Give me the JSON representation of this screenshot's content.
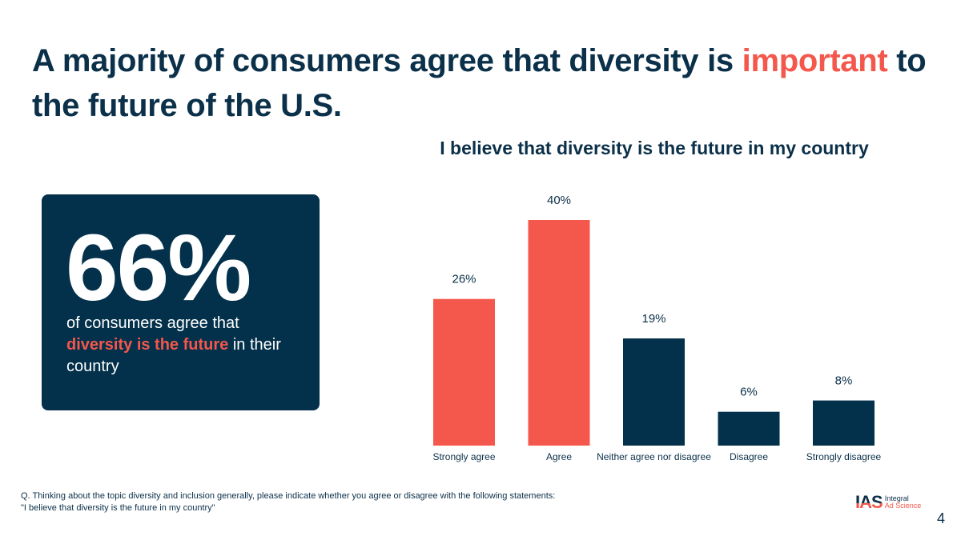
{
  "slide": {
    "title_part1": "A majority of consumers agree that diversity is ",
    "title_accent": "important",
    "title_part2": " to the future of the U.S.",
    "page_number": "4"
  },
  "stat_card": {
    "value": "66%",
    "desc_part1": "of consumers agree that ",
    "desc_highlight": "diversity is the future",
    "desc_part2": " in their country"
  },
  "footnote": {
    "line1": "Q. Thinking about the topic diversity and inclusion generally, please indicate whether you agree or disagree with the following statements:",
    "line2": "\"I believe that diversity is the future in my country\""
  },
  "logo": {
    "mark": "IAS",
    "line1": "Integral",
    "line2": "Ad Science"
  },
  "colors": {
    "navy": "#03304a",
    "coral": "#f4574b",
    "text": "#0b3049"
  },
  "chart_data": {
    "type": "bar",
    "title": "I believe that diversity is the future in my country",
    "categories": [
      "Strongly agree",
      "Agree",
      "Neither agree nor disagree",
      "Disagree",
      "Strongly disagree"
    ],
    "values": [
      26,
      40,
      19,
      6,
      8
    ],
    "data_labels": [
      "26%",
      "40%",
      "19%",
      "6%",
      "8%"
    ],
    "bar_colors": [
      "#f4574b",
      "#f4574b",
      "#03304a",
      "#03304a",
      "#03304a"
    ],
    "xlabel": "",
    "ylabel": "",
    "ylim": [
      0,
      40
    ],
    "grid": false,
    "legend": "none",
    "unit": "%"
  }
}
